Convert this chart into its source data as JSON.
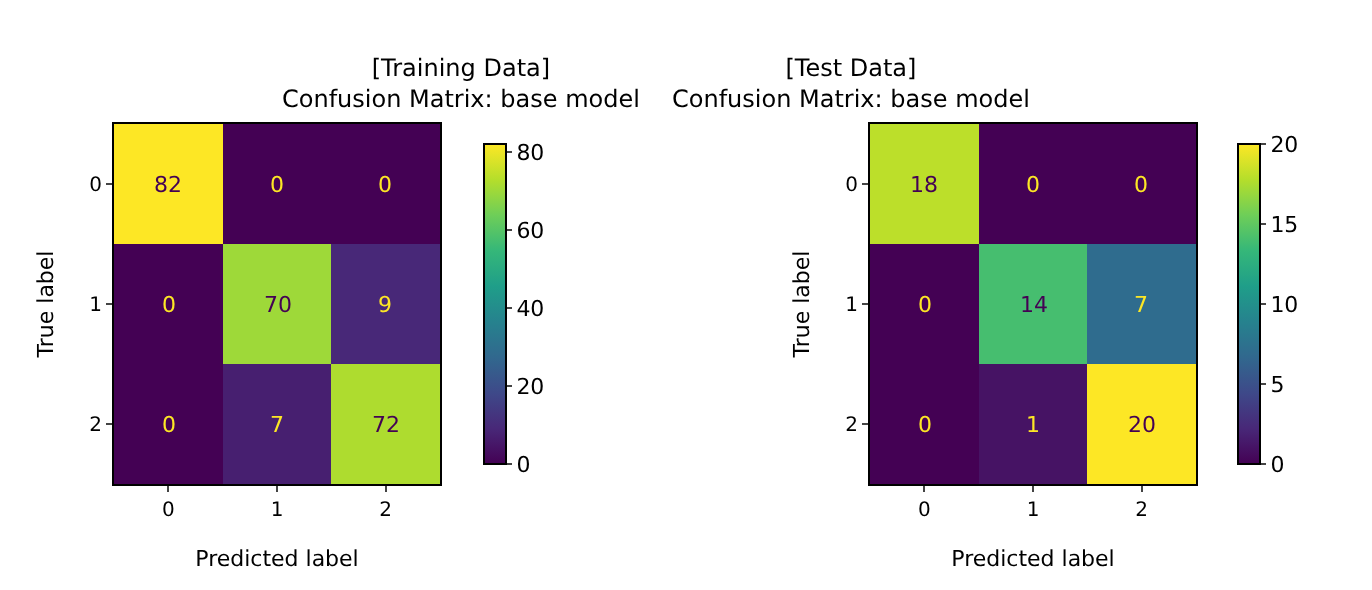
{
  "chart_data": [
    {
      "type": "heatmap",
      "title": "[Training Data]\nConfusion Matrix: base model",
      "xlabel": "Predicted label",
      "ylabel": "True label",
      "categories": [
        "0",
        "1",
        "2"
      ],
      "y_categories": [
        "0",
        "1",
        "2"
      ],
      "cells": [
        [
          82,
          0,
          0
        ],
        [
          0,
          70,
          9
        ],
        [
          0,
          7,
          72
        ]
      ],
      "data_labels": true,
      "clim": [
        0,
        82
      ],
      "cticks": [
        0,
        20,
        40,
        60,
        80
      ]
    },
    {
      "type": "heatmap",
      "title": "[Test Data]\nConfusion Matrix: base model",
      "xlabel": "Predicted label",
      "ylabel": "True label",
      "categories": [
        "0",
        "1",
        "2"
      ],
      "y_categories": [
        "0",
        "1",
        "2"
      ],
      "cells": [
        [
          18,
          0,
          0
        ],
        [
          0,
          14,
          7
        ],
        [
          0,
          1,
          20
        ]
      ],
      "data_labels": true,
      "clim": [
        0,
        20
      ],
      "cticks": [
        0,
        5,
        10,
        15,
        20
      ]
    }
  ]
}
